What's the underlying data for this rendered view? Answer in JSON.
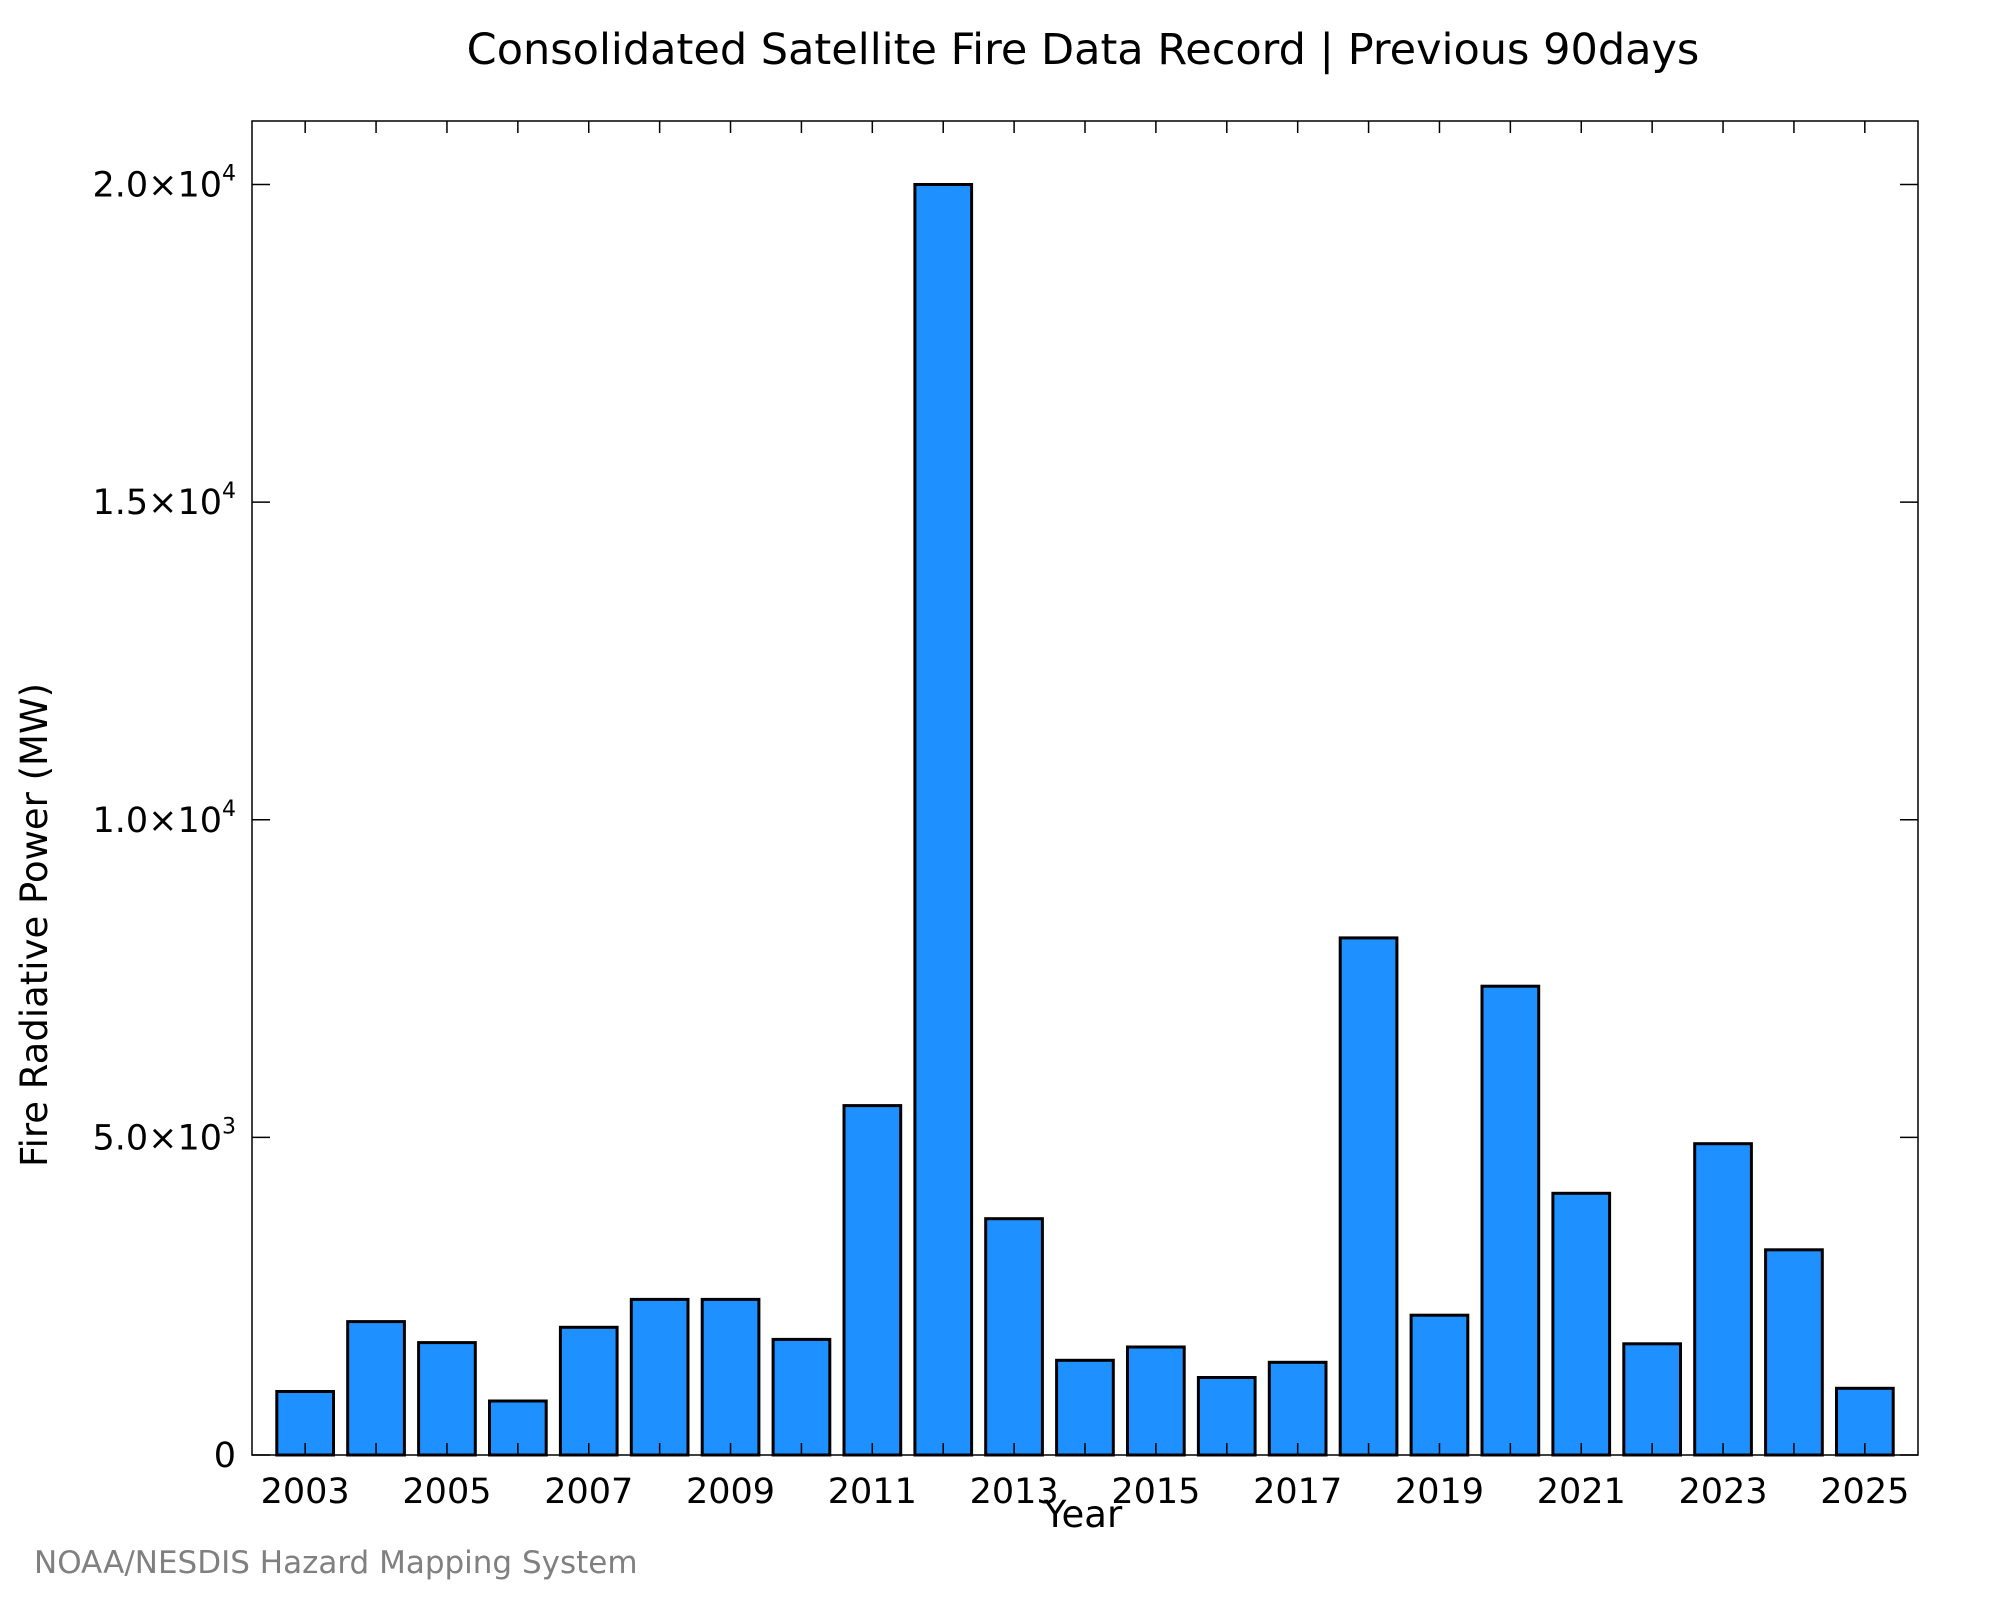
{
  "chart_data": {
    "type": "bar",
    "title": "Consolidated Satellite Fire Data Record | Previous 90days",
    "xlabel": "Year",
    "ylabel": "Fire Radiative Power (MW)",
    "categories": [
      "2003",
      "2004",
      "2005",
      "2006",
      "2007",
      "2008",
      "2009",
      "2010",
      "2011",
      "2012",
      "2013",
      "2014",
      "2015",
      "2016",
      "2017",
      "2018",
      "2019",
      "2020",
      "2021",
      "2022",
      "2023",
      "2024",
      "2025"
    ],
    "values": [
      1000,
      2100,
      1770,
      850,
      2010,
      2450,
      2450,
      1820,
      5500,
      20000,
      3720,
      1490,
      1700,
      1220,
      1460,
      8140,
      2200,
      7380,
      4120,
      1750,
      4900,
      3230,
      1050
    ],
    "ylim": [
      0,
      21000
    ],
    "y_ticks": [
      {
        "value": 0,
        "mantissa": "0",
        "exponent": ""
      },
      {
        "value": 5000,
        "mantissa": "5.0×10",
        "exponent": "3"
      },
      {
        "value": 10000,
        "mantissa": "1.0×10",
        "exponent": "4"
      },
      {
        "value": 15000,
        "mantissa": "1.5×10",
        "exponent": "4"
      },
      {
        "value": 20000,
        "mantissa": "2.0×10",
        "exponent": "4"
      }
    ],
    "x_tick_labels": [
      "2003",
      "2005",
      "2007",
      "2009",
      "2011",
      "2013",
      "2015",
      "2017",
      "2019",
      "2021",
      "2023",
      "2025"
    ],
    "grid": false,
    "bar_color": "#1e90ff",
    "bar_edge_color": "#000000",
    "credit": "NOAA/NESDIS Hazard Mapping System",
    "credit_color": "#808080"
  }
}
